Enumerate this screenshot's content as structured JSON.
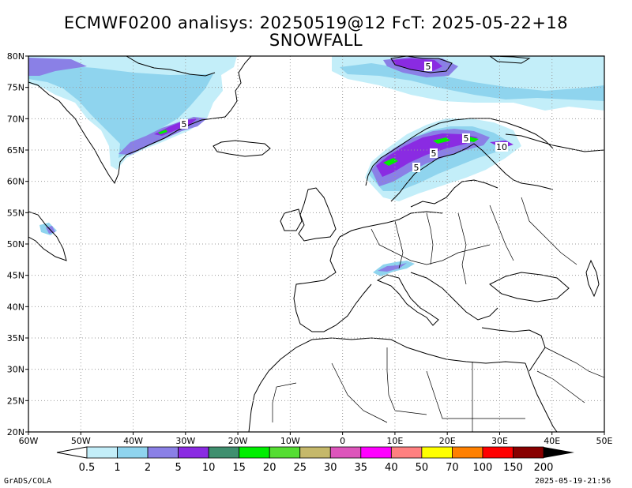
{
  "title": {
    "line1": "ECMWF0200 analisys: 20250519@12 FcT: 2025-05-22+18",
    "line2": "SNOWFALL"
  },
  "axes": {
    "lat_labels": [
      "80N",
      "75N",
      "70N",
      "65N",
      "60N",
      "55N",
      "50N",
      "45N",
      "40N",
      "35N",
      "30N",
      "25N",
      "20N"
    ],
    "lon_labels": [
      "60W",
      "50W",
      "40W",
      "30W",
      "20W",
      "10W",
      "0",
      "10E",
      "20E",
      "30E",
      "40E",
      "50E"
    ],
    "lat_range": [
      20,
      80
    ],
    "lon_range": [
      -60,
      50
    ],
    "grid": "dotted"
  },
  "contour_labels": [
    "5",
    "5",
    "5",
    "5",
    "5",
    "10"
  ],
  "colorbar": {
    "labels": [
      "0.5",
      "1",
      "2",
      "5",
      "10",
      "15",
      "20",
      "25",
      "30",
      "35",
      "40",
      "50",
      "70",
      "100",
      "150",
      "200"
    ],
    "colors": [
      "#c3eef9",
      "#8fd4ee",
      "#8a80e6",
      "#8a2be2",
      "#3f8f6f",
      "#00ee00",
      "#55dd33",
      "#c5b86a",
      "#dd55bb",
      "#ff00ff",
      "#ff8080",
      "#ffff00",
      "#ff8000",
      "#ff0000",
      "#880000"
    ],
    "under": "#ffffff",
    "over": "#000000"
  },
  "footer": {
    "left": "GrADS/COLA",
    "right": "2025-05-19-21:56"
  },
  "colors": {
    "light_blue": "#c3eef9",
    "mid_blue": "#8fd4ee",
    "periwinkle": "#8a80e6",
    "violet": "#8a2be2",
    "green": "#00ee00"
  }
}
